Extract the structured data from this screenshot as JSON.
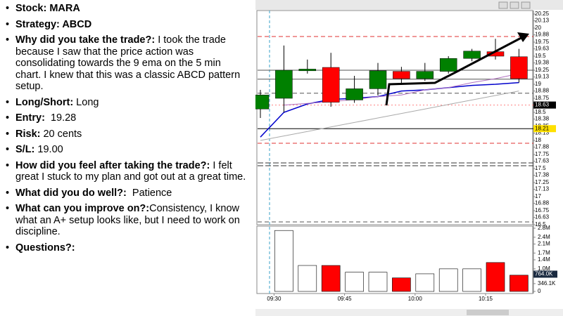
{
  "notes": [
    {
      "label": "Stock: MARA"
    },
    {
      "label": "Strategy: ABCD"
    },
    {
      "label": "Why did you take the trade?:",
      "text": " I took the trade because I saw that the price action was consolidating towards the 9 ema on the 5 min chart. I knew that this was a classic ABCD pattern setup."
    },
    {
      "label": "Long/Short:",
      "text": " Long"
    },
    {
      "label": "Entry:",
      "text": "  19.28"
    },
    {
      "label": "Risk:",
      "text": " 20 cents"
    },
    {
      "label": "S/L:",
      "text": " 19.00"
    },
    {
      "label": "How did you feel after taking the trade?:",
      "text": " I felt great I stuck to my plan and got out at a great time."
    },
    {
      "label": "What did you do well?:",
      "text": "  Patience"
    },
    {
      "label": "What can you improve on?:",
      "text": "Consistency, I know what an A+ setup looks like, but I need to work on discipline."
    },
    {
      "label": "Questions?:"
    }
  ],
  "chart_data": {
    "type": "candlestick",
    "categories": [
      null,
      "09:30",
      null,
      null,
      "09:45",
      null,
      null,
      "10:00",
      null,
      null,
      "10:15",
      null
    ],
    "open": [
      18.56,
      18.75,
      19.24,
      19.3,
      18.72,
      18.92,
      19.23,
      19.1,
      19.23,
      19.46,
      19.58,
      19.49
    ],
    "high": [
      18.9,
      19.69,
      19.44,
      19.56,
      19.15,
      19.38,
      19.31,
      19.38,
      19.5,
      19.63,
      19.81,
      19.63
    ],
    "low": [
      18.4,
      18.5,
      19.19,
      18.6,
      18.67,
      18.8,
      19.0,
      19.06,
      19.19,
      19.41,
      19.44,
      19.03
    ],
    "close": [
      18.81,
      19.25,
      19.27,
      18.68,
      18.92,
      19.24,
      19.1,
      19.23,
      19.46,
      19.59,
      19.5,
      19.1
    ],
    "up_color": "#008000",
    "down_color": "#ff0000",
    "ylim": [
      16.5,
      20.25
    ],
    "yticks": [
      20.25,
      20.13,
      20,
      19.88,
      19.75,
      19.63,
      19.5,
      19.38,
      19.25,
      19.13,
      19,
      18.88,
      18.75,
      18.5,
      18.38,
      18.25,
      18.13,
      18,
      17.88,
      17.75,
      17.63,
      17.5,
      17.38,
      17.25,
      17.13,
      17,
      16.88,
      16.75,
      16.63,
      16.5
    ],
    "last_price": 18.63,
    "marked_level": 18.21,
    "lines": [
      {
        "color": "#0000cc",
        "values": [
          18.06,
          18.5,
          18.65,
          18.73,
          18.75,
          18.78,
          18.88,
          18.9,
          18.94,
          18.98,
          19.0,
          19.03
        ]
      },
      {
        "color": "#b070c0",
        "values": [
          null,
          18.63,
          18.66,
          18.69,
          18.73,
          18.78,
          18.81,
          18.9,
          18.94,
          19.03,
          19.1,
          19.19
        ]
      },
      {
        "color": "#aaaaaa",
        "values": [
          18.0,
          18.08,
          18.16,
          18.24,
          18.32,
          18.4,
          18.48,
          18.56,
          18.64,
          18.72,
          18.8,
          18.88
        ]
      }
    ],
    "levels": [
      {
        "value": 19.85,
        "color": "#e03030",
        "dash": "6,4"
      },
      {
        "value": 19.25,
        "color": "#555555",
        "dash": "none"
      },
      {
        "value": 19.09,
        "color": "#555555",
        "dash": "none"
      },
      {
        "value": 18.84,
        "color": "#555555",
        "dash": "6,4"
      },
      {
        "value": 18.63,
        "color": "#ff8080",
        "dash": "2,3"
      },
      {
        "value": 18.21,
        "color": "#000000",
        "dash": "none"
      },
      {
        "value": 17.95,
        "color": "#e03030",
        "dash": "6,4"
      },
      {
        "value": 17.6,
        "color": "#333333",
        "dash": "8,3"
      },
      {
        "value": 17.55,
        "color": "#333333",
        "dash": "8,3"
      },
      {
        "value": 16.55,
        "color": "#555555",
        "dash": "6,4"
      }
    ],
    "volume": [
      null,
      2700000,
      1150000,
      1150000,
      850000,
      850000,
      600000,
      780000,
      1000000,
      1000000,
      1280000,
      720000
    ],
    "volume_ylim": [
      0,
      2800000
    ],
    "volume_ticks": [
      {
        "value": 2800000,
        "label": "2.8M"
      },
      {
        "value": 2400000,
        "label": "2.4M"
      },
      {
        "value": 2100000,
        "label": "2.1M"
      },
      {
        "value": 1700000,
        "label": "1.7M"
      },
      {
        "value": 1400000,
        "label": "1.4M"
      },
      {
        "value": 1000000,
        "label": "1.0M"
      },
      {
        "value": 346100,
        "label": "346.1K"
      },
      0
    ],
    "volume_marker": {
      "value": 764000,
      "label": "764.0K"
    }
  }
}
